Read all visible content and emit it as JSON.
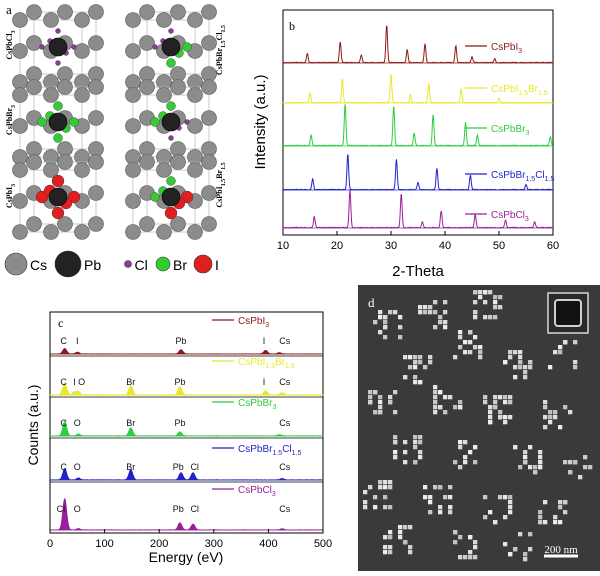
{
  "figure": {
    "panels": [
      "a",
      "b",
      "c",
      "d"
    ],
    "crystal_labels_left": [
      "CsPbCl3",
      "CsPbBr3",
      "CsPbI3"
    ],
    "crystal_labels_right": [
      "CsPbBr1.5Cl1.5",
      "CsPbI1.5Br1.5"
    ],
    "legend_atoms": [
      {
        "label": "Cs",
        "color": "#8c8c8c"
      },
      {
        "label": "Pb",
        "color": "#222222"
      },
      {
        "label": "Cl",
        "color": "#8e3c9a"
      },
      {
        "label": "Br",
        "color": "#33cc33"
      },
      {
        "label": "I",
        "color": "#e02020"
      }
    ],
    "scale_bar_label": "200 nm"
  },
  "chart_data": [
    {
      "type": "line",
      "panel": "b",
      "title": "",
      "xlabel": "2-Theta",
      "ylabel": "Intensity (a.u.)",
      "xlim": [
        10,
        60
      ],
      "xticks": [
        10,
        20,
        30,
        40,
        50,
        60
      ],
      "series": [
        {
          "name": "CsPbI3",
          "color": "#8b1a1a",
          "peaks": [
            [
              14.5,
              0.25
            ],
            [
              20.6,
              0.55
            ],
            [
              24.5,
              0.2
            ],
            [
              29.2,
              1.0
            ],
            [
              33.0,
              0.35
            ],
            [
              36.3,
              0.5
            ],
            [
              42.0,
              0.45
            ],
            [
              45.0,
              0.15
            ],
            [
              49.2,
              0.1
            ]
          ]
        },
        {
          "name": "CsPbI1.5Br1.5",
          "color": "#e8e82a",
          "peaks": [
            [
              15.0,
              0.3
            ],
            [
              21.0,
              0.75
            ],
            [
              30.0,
              0.9
            ],
            [
              33.6,
              0.25
            ],
            [
              37.0,
              0.6
            ],
            [
              43.0,
              0.45
            ],
            [
              50.0,
              0.15
            ]
          ]
        },
        {
          "name": "CsPbBr3",
          "color": "#2ecc40",
          "peaks": [
            [
              15.2,
              0.25
            ],
            [
              21.5,
              1.0
            ],
            [
              30.5,
              0.95
            ],
            [
              34.3,
              0.3
            ],
            [
              37.8,
              0.75
            ],
            [
              43.8,
              0.55
            ],
            [
              46.0,
              0.25
            ],
            [
              59.5,
              0.2
            ]
          ]
        },
        {
          "name": "CsPbBr1.5Cl1.5",
          "color": "#2222c8",
          "peaks": [
            [
              15.5,
              0.3
            ],
            [
              22.0,
              1.0
            ],
            [
              31.0,
              0.85
            ],
            [
              35.0,
              0.2
            ],
            [
              38.5,
              0.6
            ],
            [
              44.7,
              0.4
            ],
            [
              55.0,
              0.15
            ]
          ]
        },
        {
          "name": "CsPbCl3",
          "color": "#9b1f9b",
          "peaks": [
            [
              15.8,
              0.3
            ],
            [
              22.4,
              1.0
            ],
            [
              31.9,
              0.9
            ],
            [
              35.8,
              0.15
            ],
            [
              39.3,
              0.45
            ],
            [
              45.6,
              0.35
            ],
            [
              51.2,
              0.2
            ],
            [
              56.6,
              0.15
            ]
          ]
        }
      ]
    },
    {
      "type": "line",
      "panel": "c",
      "title": "",
      "xlabel": "Energy (eV)",
      "ylabel": "Counts (a.u.)",
      "xlim": [
        0,
        500
      ],
      "xticks": [
        0,
        100,
        200,
        300,
        400,
        500
      ],
      "series": [
        {
          "name": "CsPbI3",
          "color": "#8b1a1a",
          "peaks": [
            [
              27,
              0.45
            ],
            [
              50,
              0.15
            ],
            [
              240,
              0.35
            ],
            [
              395,
              0.3
            ],
            [
              420,
              0.1
            ]
          ],
          "annotations": [
            {
              "text": "C",
              "x": 25
            },
            {
              "text": "I",
              "x": 50
            },
            {
              "text": "Pb",
              "x": 240
            },
            {
              "text": "I",
              "x": 392
            },
            {
              "text": "Cs",
              "x": 430
            }
          ]
        },
        {
          "name": "CsPbI1.5Br1.5",
          "color": "#e8e82a",
          "peaks": [
            [
              27,
              0.6
            ],
            [
              45,
              0.15
            ],
            [
              52,
              0.15
            ],
            [
              148,
              0.45
            ],
            [
              238,
              0.4
            ],
            [
              395,
              0.2
            ],
            [
              425,
              0.1
            ]
          ],
          "annotations": [
            {
              "text": "C",
              "x": 25
            },
            {
              "text": "I",
              "x": 45
            },
            {
              "text": "O",
              "x": 58
            },
            {
              "text": "Br",
              "x": 148
            },
            {
              "text": "Pb",
              "x": 238
            },
            {
              "text": "I",
              "x": 392
            },
            {
              "text": "Cs",
              "x": 430
            }
          ]
        },
        {
          "name": "CsPbBr3",
          "color": "#2ecc40",
          "peaks": [
            [
              27,
              0.9
            ],
            [
              52,
              0.12
            ],
            [
              148,
              0.5
            ],
            [
              238,
              0.25
            ],
            [
              420,
              0.08
            ]
          ],
          "annotations": [
            {
              "text": "C",
              "x": 25
            },
            {
              "text": "O",
              "x": 50
            },
            {
              "text": "Br",
              "x": 148
            },
            {
              "text": "Pb",
              "x": 238
            },
            {
              "text": "Cs",
              "x": 430
            }
          ]
        },
        {
          "name": "CsPbBr1.5Cl1.5",
          "color": "#2222c8",
          "peaks": [
            [
              27,
              0.7
            ],
            [
              52,
              0.12
            ],
            [
              148,
              0.65
            ],
            [
              240,
              0.45
            ],
            [
              262,
              0.45
            ],
            [
              425,
              0.08
            ]
          ],
          "annotations": [
            {
              "text": "C",
              "x": 25
            },
            {
              "text": "O",
              "x": 50
            },
            {
              "text": "Br",
              "x": 148
            },
            {
              "text": "Pb",
              "x": 235
            },
            {
              "text": "Cl",
              "x": 265
            },
            {
              "text": "Cs",
              "x": 430
            }
          ]
        },
        {
          "name": "CsPbCl3",
          "color": "#9b1f9b",
          "peaks": [
            [
              27,
              2.4
            ],
            [
              52,
              0.1
            ],
            [
              238,
              0.55
            ],
            [
              262,
              0.45
            ],
            [
              425,
              0.08
            ]
          ],
          "annotations": [
            {
              "text": "Cl",
              "x": 20
            },
            {
              "text": "O",
              "x": 50
            },
            {
              "text": "Pb",
              "x": 235
            },
            {
              "text": "Cl",
              "x": 265
            },
            {
              "text": "Cs",
              "x": 430
            }
          ]
        }
      ]
    }
  ]
}
